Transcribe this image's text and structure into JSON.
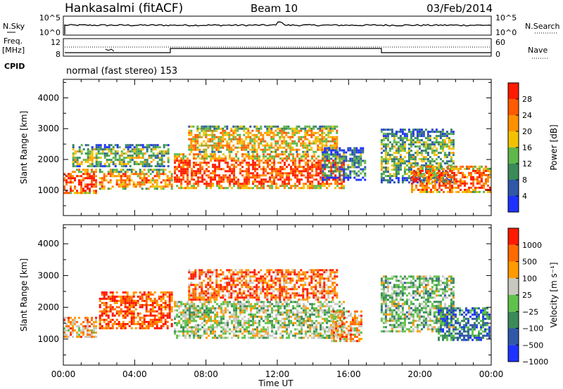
{
  "header": {
    "station": "Hankasalmi (fitACF)",
    "beam": "Beam 10",
    "date": "03/Feb/2014"
  },
  "info": {
    "nsky_label": "N.Sky",
    "nsearch_label": "N.Search",
    "freq_label_1": "Freq.",
    "freq_label_2": "[MHz]",
    "nave_label": "Nave",
    "cpid_label": "CPID",
    "cpid_value": "normal (fast stereo) 153",
    "noise_ticks": [
      "10^5",
      "10^0"
    ],
    "freq_ticks": [
      "12",
      "8"
    ],
    "nave_ticks": [
      "60",
      "0"
    ]
  },
  "chart_data": [
    {
      "type": "heatmap",
      "panel": "power",
      "ylabel": "Slant Range [km]",
      "xlabel": "Time UT",
      "x_ticks": [
        "00:00",
        "04:00",
        "08:00",
        "12:00",
        "16:00",
        "20:00",
        "00:00"
      ],
      "x_range_hours": [
        0,
        24
      ],
      "y_ticks": [
        1000,
        2000,
        3000,
        4000
      ],
      "ylim": [
        180,
        4600
      ],
      "colorbar_label": "Power [dB]",
      "colorbar_ticks": [
        4,
        8,
        12,
        16,
        20,
        24,
        28
      ],
      "colors": [
        "#1e32ff",
        "#2f58a8",
        "#3a8a5a",
        "#5fb84a",
        "#f2c200",
        "#ff9000",
        "#ff5a00",
        "#ff1a00"
      ],
      "regions": [
        {
          "t": [
            0.0,
            2.0
          ],
          "r": [
            850,
            1700
          ],
          "level": 0.9
        },
        {
          "t": [
            0.5,
            6.0
          ],
          "r": [
            1700,
            2500
          ],
          "level": 0.45
        },
        {
          "t": [
            2.0,
            6.2
          ],
          "r": [
            950,
            1700
          ],
          "level": 0.7
        },
        {
          "t": [
            6.2,
            15.8
          ],
          "r": [
            1000,
            2200
          ],
          "level": 0.85
        },
        {
          "t": [
            7.0,
            15.5
          ],
          "r": [
            2200,
            3100
          ],
          "level": 0.62
        },
        {
          "t": [
            14.5,
            17.0
          ],
          "r": [
            1300,
            2400
          ],
          "level": 0.3
        },
        {
          "t": [
            17.8,
            22.0
          ],
          "r": [
            1200,
            3000
          ],
          "level": 0.42
        },
        {
          "t": [
            19.5,
            24.0
          ],
          "r": [
            850,
            1800
          ],
          "level": 0.82
        }
      ]
    },
    {
      "type": "heatmap",
      "panel": "velocity",
      "ylabel": "Slant Range [km]",
      "xlabel": "Time UT",
      "x_ticks": [
        "00:00",
        "04:00",
        "08:00",
        "12:00",
        "16:00",
        "20:00",
        "00:00"
      ],
      "x_range_hours": [
        0,
        24
      ],
      "y_ticks": [
        1000,
        2000,
        3000,
        4000
      ],
      "ylim": [
        180,
        4600
      ],
      "colorbar_label": "Velocity [m s⁻¹]",
      "colorbar_ticks": [
        "1000",
        "500",
        "100",
        "25",
        "−25",
        "−100",
        "−500",
        "−1000"
      ],
      "colors": [
        "#1e32ff",
        "#2f58a8",
        "#3a8a5a",
        "#5fc24a",
        "#c8c8c0",
        "#ff9a00",
        "#ff6a00",
        "#ff1a00"
      ],
      "regions": [
        {
          "t": [
            0.0,
            2.0
          ],
          "r": [
            1000,
            1700
          ],
          "level": 0.7
        },
        {
          "t": [
            2.0,
            6.2
          ],
          "r": [
            1300,
            2500
          ],
          "level": 0.85
        },
        {
          "t": [
            6.2,
            15.8
          ],
          "r": [
            1000,
            2200
          ],
          "level": 0.5
        },
        {
          "t": [
            7.0,
            15.5
          ],
          "r": [
            2200,
            3200
          ],
          "level": 0.8
        },
        {
          "t": [
            15.0,
            16.8
          ],
          "r": [
            900,
            1900
          ],
          "level": 0.7
        },
        {
          "t": [
            17.8,
            22.0
          ],
          "r": [
            1200,
            3000
          ],
          "level": 0.45
        },
        {
          "t": [
            21.0,
            24.0
          ],
          "r": [
            900,
            2000
          ],
          "level": 0.25
        }
      ]
    }
  ]
}
